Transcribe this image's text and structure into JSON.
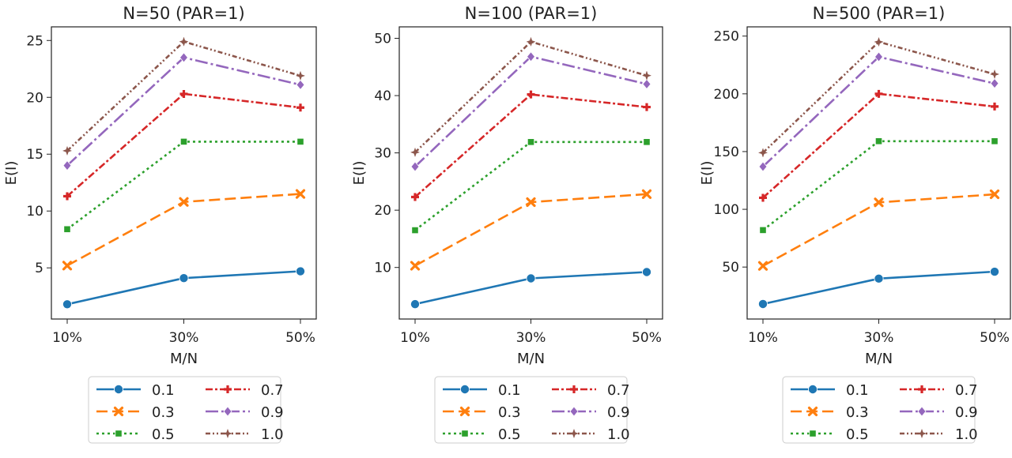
{
  "chart_data": [
    {
      "type": "line",
      "title": "N=50 (PAR=1)",
      "xlabel": "M/N",
      "ylabel": "E(I)",
      "categories": [
        "10%",
        "30%",
        "50%"
      ],
      "ylim": [
        0.5,
        26.2
      ],
      "yticks": [
        5,
        10,
        15,
        20,
        25
      ],
      "grid": false,
      "legend_placement": "bottom",
      "series": [
        {
          "name": "0.1",
          "values": [
            1.8,
            4.1,
            4.7
          ]
        },
        {
          "name": "0.3",
          "values": [
            5.2,
            10.8,
            11.5
          ]
        },
        {
          "name": "0.5",
          "values": [
            8.4,
            16.1,
            16.1
          ]
        },
        {
          "name": "0.7",
          "values": [
            11.3,
            20.3,
            19.1
          ]
        },
        {
          "name": "0.9",
          "values": [
            14.0,
            23.5,
            21.1
          ]
        },
        {
          "name": "1.0",
          "values": [
            15.3,
            24.9,
            21.9
          ]
        }
      ]
    },
    {
      "type": "line",
      "title": "N=100 (PAR=1)",
      "xlabel": "M/N",
      "ylabel": "E(I)",
      "categories": [
        "10%",
        "30%",
        "50%"
      ],
      "ylim": [
        1,
        52
      ],
      "yticks": [
        10,
        20,
        30,
        40,
        50
      ],
      "grid": false,
      "legend_placement": "bottom",
      "series": [
        {
          "name": "0.1",
          "values": [
            3.6,
            8.1,
            9.2
          ]
        },
        {
          "name": "0.3",
          "values": [
            10.3,
            21.4,
            22.8
          ]
        },
        {
          "name": "0.5",
          "values": [
            16.5,
            31.9,
            31.9
          ]
        },
        {
          "name": "0.7",
          "values": [
            22.3,
            40.2,
            38.0
          ]
        },
        {
          "name": "0.9",
          "values": [
            27.6,
            46.8,
            42.0
          ]
        },
        {
          "name": "1.0",
          "values": [
            30.1,
            49.4,
            43.5
          ]
        }
      ]
    },
    {
      "type": "line",
      "title": "N=500 (PAR=1)",
      "xlabel": "M/N",
      "ylabel": "E(I)",
      "categories": [
        "10%",
        "30%",
        "50%"
      ],
      "ylim": [
        5,
        258
      ],
      "yticks": [
        50,
        100,
        150,
        200,
        250
      ],
      "grid": false,
      "legend_placement": "bottom",
      "series": [
        {
          "name": "0.1",
          "values": [
            18,
            40,
            46
          ]
        },
        {
          "name": "0.3",
          "values": [
            51,
            106,
            113
          ]
        },
        {
          "name": "0.5",
          "values": [
            82,
            159,
            159
          ]
        },
        {
          "name": "0.7",
          "values": [
            110,
            200,
            189
          ]
        },
        {
          "name": "0.9",
          "values": [
            137,
            232,
            209
          ]
        },
        {
          "name": "1.0",
          "values": [
            149,
            245,
            217
          ]
        }
      ]
    }
  ],
  "styles": {
    "colors": [
      "#1f77b4",
      "#ff7f0e",
      "#2ca02c",
      "#d62728",
      "#9467bd",
      "#8c564b"
    ],
    "markers": [
      "circle",
      "x",
      "square",
      "plus",
      "diamond",
      "star"
    ],
    "dashes": [
      "",
      "14,6",
      "3,4",
      "9,3,3,3",
      "16,4,3,4",
      "6,3,2,3,2,3"
    ]
  }
}
